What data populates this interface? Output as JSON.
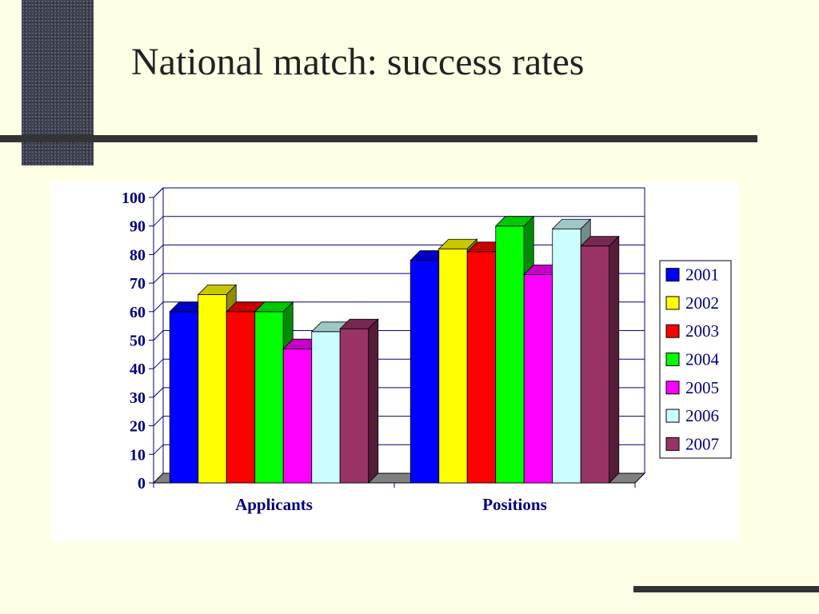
{
  "title": "National match: success rates",
  "chart_data": {
    "type": "bar",
    "title": "National match: success rates",
    "xlabel": "",
    "ylabel": "",
    "ylim": [
      0,
      100
    ],
    "yticks": [
      0,
      10,
      20,
      30,
      40,
      50,
      60,
      70,
      80,
      90,
      100
    ],
    "categories": [
      "Applicants",
      "Positions"
    ],
    "grid": true,
    "legend_position": "right",
    "series": [
      {
        "name": "2001",
        "color": "#0000ff",
        "values": [
          60,
          78
        ]
      },
      {
        "name": "2002",
        "color": "#ffff00",
        "values": [
          66,
          82
        ]
      },
      {
        "name": "2003",
        "color": "#ff0000",
        "values": [
          60,
          81
        ]
      },
      {
        "name": "2004",
        "color": "#00ff00",
        "values": [
          60,
          90
        ]
      },
      {
        "name": "2005",
        "color": "#ff00ff",
        "values": [
          47,
          73
        ]
      },
      {
        "name": "2006",
        "color": "#ccffff",
        "values": [
          53,
          89
        ]
      },
      {
        "name": "2007",
        "color": "#993366",
        "values": [
          54,
          83
        ]
      }
    ]
  }
}
